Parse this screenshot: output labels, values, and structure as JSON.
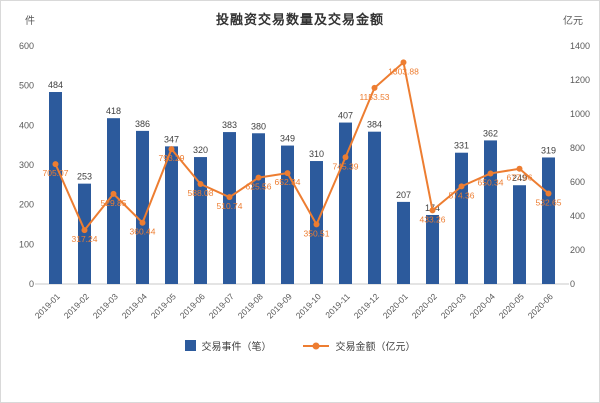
{
  "title": "投融资交易数量及交易金额",
  "colors": {
    "bar": "#2C5A9C",
    "line": "#ED7D31",
    "tick_text": "#595959",
    "bar_label_text": "#3F3F3F"
  },
  "legend": {
    "bars_label": "交易事件（笔）",
    "line_label": "交易金额（亿元）"
  },
  "chart_data": {
    "type": "bar+line",
    "title": "投融资交易数量及交易金额",
    "categories": [
      "2019-01",
      "2019-02",
      "2019-03",
      "2019-04",
      "2019-05",
      "2019-06",
      "2019-07",
      "2019-08",
      "2019-09",
      "2019-10",
      "2019-11",
      "2019-12",
      "2020-01",
      "2020-02",
      "2020-03",
      "2020-04",
      "2020-05",
      "2020-06"
    ],
    "series": [
      {
        "name": "交易事件（笔）",
        "type": "bar",
        "axis": "left",
        "values": [
          484,
          253,
          418,
          386,
          347,
          320,
          383,
          380,
          349,
          310,
          407,
          384,
          207,
          174,
          331,
          362,
          249,
          319
        ]
      },
      {
        "name": "交易金额（亿元）",
        "type": "line",
        "axis": "right",
        "values": [
          705.07,
          317.24,
          529.85,
          360.44,
          793.29,
          588.08,
          510.74,
          625.56,
          652.34,
          350.51,
          745.39,
          1153.53,
          1303.88,
          433.26,
          574.36,
          650.34,
          677.96,
          532.65
        ]
      }
    ],
    "left_axis": {
      "label": "件",
      "min": 0,
      "max": 600,
      "step": 100
    },
    "right_axis": {
      "label": "亿元",
      "min": 0,
      "max": 1400,
      "step": 200
    },
    "grid": false,
    "legend_position": "bottom"
  }
}
